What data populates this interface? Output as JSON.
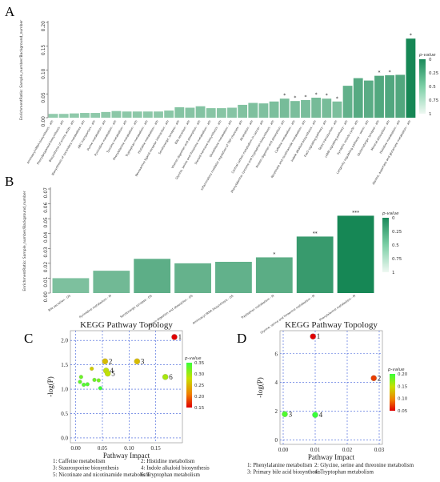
{
  "panels": {
    "A": "A",
    "B": "B",
    "C": "C",
    "D": "D"
  },
  "chart_data": [
    {
      "type": "bar",
      "panel": "A",
      "ylabel": "EnrichmentRatio: Sample_number/Background_number",
      "ylim": [
        0,
        0.2
      ],
      "yticks": [
        "0.00",
        "0.05",
        "0.10",
        "0.15",
        "0.20"
      ],
      "categories": [
        "Aminoacyl-tRNA biosynthesis - ath",
        "Phenylpropanoid biosynthesis - ath",
        "Biosynthesis of amino acids - ath",
        "Biosynthesis of secondary metabolites - ath",
        "ABC transporters - ath",
        "Purine metabolism - ath",
        "Pyrimidine metabolism - ath",
        "Tyrosine metabolism - ath",
        "Phenylalanine metabolism - ath",
        "Tryptophan metabolism - ath",
        "Histidine metabolism - ath",
        "Neuroactive ligand-receptor interaction - ath",
        "Serotonergic synapse - ath",
        "Bile secretion - ath",
        "Vitamin digestion and absorption - ath",
        "Glycine, serine and threonine metabolism - ath",
        "Steroid hormone biosynthesis - ath",
        "Glutathione metabolism - ath",
        "Inflammatory mediator regulation of TRP channels - ath",
        "Alcoholism - ath",
        "Central carbon metabolism in cancer - ath",
        "Phenylalanine, tyrosine and tryptophan biosynthesis - ath",
        "Protein digestion and absorption - ath",
        "Caffeine metabolism - ath",
        "Nicotinate and nicotinamide metabolism - ath",
        "Indole alkaloid biosynthesis - ath",
        "FoxO signaling pathway - ath",
        "Taste transduction - ath",
        "cAMP signaling pathway - ath",
        "Synaptic vesicle cycle - ath",
        "Longevity regulating pathway - worm - ath",
        "Glutamatergic synapse - ath",
        "Mineral absorption - ath",
        "Histidine metabolism - ath",
        "Alanine, aspartate and glutamate metabolism - ath"
      ],
      "values": [
        0.008,
        0.008,
        0.009,
        0.01,
        0.01,
        0.012,
        0.014,
        0.013,
        0.013,
        0.013,
        0.013,
        0.015,
        0.022,
        0.021,
        0.024,
        0.02,
        0.02,
        0.021,
        0.027,
        0.031,
        0.03,
        0.034,
        0.04,
        0.035,
        0.037,
        0.042,
        0.04,
        0.034,
        0.067,
        0.083,
        0.078,
        0.088,
        0.089,
        0.09,
        0.166
      ],
      "significance": [
        "",
        "",
        "",
        "",
        "",
        "",
        "",
        "",
        "",
        "",
        "",
        "",
        "",
        "",
        "",
        "",
        "",
        "",
        "",
        "",
        "",
        "",
        "*",
        "*",
        "*",
        "*",
        "*",
        "*",
        "",
        "",
        "",
        "*",
        "*",
        "",
        "*"
      ],
      "legend": {
        "title": "p-value",
        "ticks": [
          "0",
          "0.25",
          "0.5",
          "0.75",
          "1"
        ]
      }
    },
    {
      "type": "bar",
      "panel": "B",
      "ylabel": "EnrichmentRatio: Sample_number/Background_number",
      "ylim": [
        0,
        0.07
      ],
      "yticks": [
        "0.00",
        "0.01",
        "0.02",
        "0.03",
        "0.04",
        "0.05",
        "0.06",
        "0.07"
      ],
      "categories": [
        "Bile secretion - OS",
        "Pyrimidine metabolism - M",
        "Serotonergic synapse - OS",
        "Protein digestion and absorption - OS",
        "Aminoacyl-tRNA biosynthesis - OS",
        "Tryptophan metabolism - M",
        "Glycine, serine and threonine metabolism - M",
        "Phenylalanine metabolism - M"
      ],
      "values": [
        0.01,
        0.015,
        0.023,
        0.02,
        0.021,
        0.024,
        0.038,
        0.052
      ],
      "significance": [
        "",
        "",
        "",
        "",
        "",
        "*",
        "**",
        "***"
      ],
      "legend": {
        "title": "p-value",
        "ticks": [
          "0",
          "0.25",
          "0.5",
          "0.75",
          "1"
        ]
      }
    },
    {
      "type": "scatter",
      "panel": "C",
      "title": "KEGG Pathway Topology",
      "xlabel": "Pathway Impact",
      "ylabel": "-log(P)",
      "xlim": [
        -0.01,
        0.2
      ],
      "ylim": [
        -0.1,
        2.2
      ],
      "xticks": [
        0.0,
        0.05,
        0.1,
        0.15
      ],
      "yticks": [
        0.0,
        0.5,
        1.0,
        1.5,
        2.0
      ],
      "xtick_labels": [
        "0.00",
        "0.05",
        "0.10",
        "0.15"
      ],
      "ytick_labels": [
        "0.0",
        "0.5",
        "1.0",
        "1.5",
        "2.0"
      ],
      "points": [
        {
          "x": 0.185,
          "y": 2.07,
          "label": "1",
          "pvalue": 0.01
        },
        {
          "x": 0.055,
          "y": 1.57,
          "label": "2",
          "pvalue": 0.2
        },
        {
          "x": 0.115,
          "y": 1.57,
          "label": "3",
          "pvalue": 0.2
        },
        {
          "x": 0.057,
          "y": 1.38,
          "label": "4",
          "pvalue": 0.25
        },
        {
          "x": 0.06,
          "y": 1.32,
          "label": "5",
          "pvalue": 0.25
        },
        {
          "x": 0.168,
          "y": 1.25,
          "label": "6",
          "pvalue": 0.27
        },
        {
          "x": 0.03,
          "y": 1.42,
          "label": "",
          "pvalue": 0.22
        },
        {
          "x": 0.01,
          "y": 1.25,
          "label": "",
          "pvalue": 0.32
        },
        {
          "x": 0.008,
          "y": 1.15,
          "label": "",
          "pvalue": 0.33
        },
        {
          "x": 0.035,
          "y": 1.19,
          "label": "",
          "pvalue": 0.32
        },
        {
          "x": 0.043,
          "y": 1.18,
          "label": "",
          "pvalue": 0.31
        },
        {
          "x": 0.015,
          "y": 1.09,
          "label": "",
          "pvalue": 0.34
        },
        {
          "x": 0.022,
          "y": 1.1,
          "label": "",
          "pvalue": 0.34
        },
        {
          "x": 0.046,
          "y": 1.02,
          "label": "",
          "pvalue": 0.36
        }
      ],
      "legend": {
        "title": "p-value",
        "ticks": [
          "0.35",
          "0.30",
          "0.25",
          "0.20",
          "0.15"
        ]
      },
      "caption": [
        [
          "1: Caffeine metabolism",
          "2: Histidine metabolism"
        ],
        [
          "3: Staurosporine biosynthesis",
          "4: Indole alkaloid biosynthesis"
        ],
        [
          "5: Nicotinate and nicotinamide metabolism",
          "6: Tryptophan metabolism"
        ]
      ]
    },
    {
      "type": "scatter",
      "panel": "D",
      "title": "KEGG Pathway Topology",
      "xlabel": "Pathway Impact",
      "ylabel": "-log(P)",
      "xlim": [
        -0.001,
        0.031
      ],
      "ylim": [
        -0.3,
        7.6
      ],
      "xticks": [
        0.0,
        0.01,
        0.02,
        0.03
      ],
      "yticks": [
        0,
        2,
        4,
        6
      ],
      "xtick_labels": [
        "0.00",
        "0.01",
        "0.02",
        "0.03"
      ],
      "ytick_labels": [
        "0",
        "2",
        "4",
        "6"
      ],
      "points": [
        {
          "x": 0.0093,
          "y": 7.2,
          "label": "1",
          "pvalue": 0.005
        },
        {
          "x": 0.0283,
          "y": 4.3,
          "label": "2",
          "pvalue": 0.035
        },
        {
          "x": 0.0005,
          "y": 1.8,
          "label": "3",
          "pvalue": 0.18
        },
        {
          "x": 0.01,
          "y": 1.75,
          "label": "4",
          "pvalue": 0.19
        }
      ],
      "legend": {
        "title": "p-value",
        "ticks": [
          "0.20",
          "0.15",
          "0.10",
          "0.05"
        ]
      },
      "caption": [
        [
          "1: Phenylalanine metabolism",
          "2: Glycine, serine and threonine metabolism"
        ],
        [
          "3: Primary bile acid biosynthesis",
          "4: Tryptophan metabolism"
        ]
      ]
    }
  ]
}
